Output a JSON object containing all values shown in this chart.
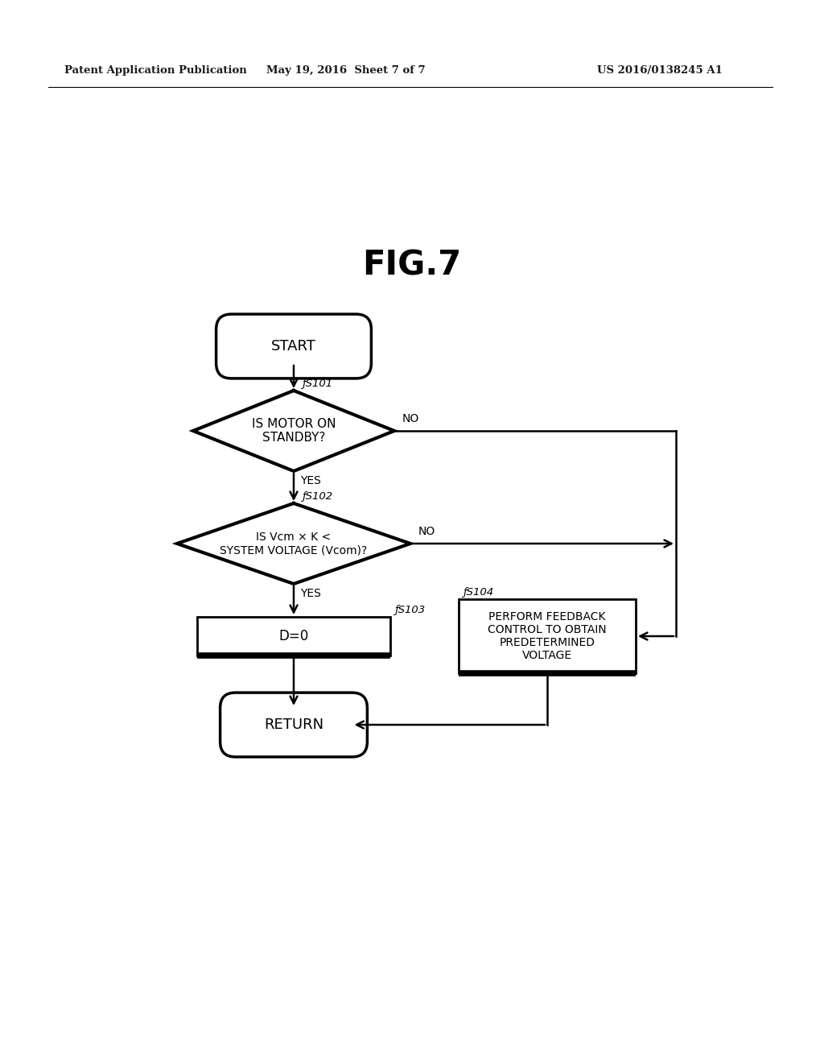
{
  "title": "FIG.7",
  "header_left": "Patent Application Publication",
  "header_mid": "May 19, 2016  Sheet 7 of 7",
  "header_right": "US 2016/0138245 A1",
  "background_color": "#ffffff",
  "start_label": "START",
  "return_label": "RETURN",
  "d1_label": "IS MOTOR ON\nSTANDBY?",
  "d1_step": "S101",
  "d2_label": "IS Vcm × K <\nSYSTEM VOLTAGE (Vcom)?",
  "d2_step": "S102",
  "s103_label": "D=0",
  "s103_step": "S103",
  "s104_label": "PERFORM FEEDBACK\nCONTROL TO OBTAIN\nPREDETERMINED\nVOLTAGE",
  "s104_step": "S104",
  "yes_label": "YES",
  "no_label": "NO"
}
